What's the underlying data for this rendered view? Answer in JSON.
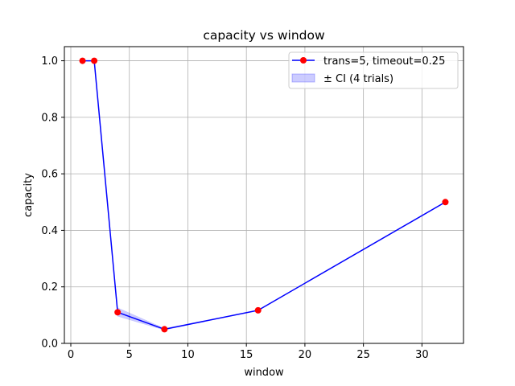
{
  "chart_data": {
    "type": "line",
    "title": "capacity vs window",
    "xlabel": "window",
    "ylabel": "capacity",
    "xlim": [
      -0.55,
      33.55
    ],
    "ylim": [
      0.0,
      1.05
    ],
    "xticks": [
      0,
      5,
      10,
      15,
      20,
      25,
      30
    ],
    "xtick_labels": [
      "0",
      "5",
      "10",
      "15",
      "20",
      "25",
      "30"
    ],
    "yticks": [
      0.0,
      0.2,
      0.4,
      0.6,
      0.8,
      1.0
    ],
    "ytick_labels": [
      "0.0",
      "0.2",
      "0.4",
      "0.6",
      "0.8",
      "1.0"
    ],
    "grid": true,
    "legend_position": "top-right",
    "colors": {
      "line": "#0000ff",
      "marker": "#ff0000",
      "band_fill": "#0000ff",
      "grid": "#b0b0b0",
      "axes": "#000000"
    },
    "series": [
      {
        "name": "trans=5, timeout=0.25",
        "x": [
          1,
          2,
          4,
          8,
          16,
          32
        ],
        "y": [
          1.0,
          1.0,
          0.11,
          0.05,
          0.117,
          0.5
        ],
        "ci_lower": [
          1.0,
          1.0,
          0.096,
          0.047,
          0.117,
          0.5
        ],
        "ci_upper": [
          1.0,
          1.0,
          0.126,
          0.053,
          0.117,
          0.5
        ]
      }
    ],
    "band_label": "± CI (4 trials)"
  }
}
